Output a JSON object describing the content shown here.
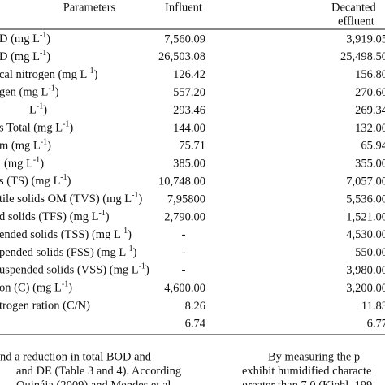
{
  "table": {
    "header": {
      "parameters": "Parameters",
      "influent": "Influent",
      "effluent": [
        "Decanted",
        "effluent"
      ]
    },
    "rows": [
      {
        "parameter": {
          "text": "D (mg L",
          "sup": "-1",
          "after": ")"
        },
        "influent": "7,560.09",
        "effluent": "3,919.05"
      },
      {
        "parameter": {
          "text": "D (mg L",
          "sup": "-1",
          "after": ")"
        },
        "influent": "26,503.08",
        "effluent": "25,498.50"
      },
      {
        "parameter": {
          "text": "cal nitrogen (mg L",
          "sup": "-1",
          "after": ")"
        },
        "influent": "126.42",
        "effluent": "156.80"
      },
      {
        "parameter": {
          "text": "gen (mg L",
          "sup": "-1",
          "after": ")"
        },
        "influent": "557.20",
        "effluent": "270.60"
      },
      {
        "parameter": {
          "text": "L",
          "sup": "-1",
          "after": ")"
        },
        "influent": "293.46",
        "effluent": "269.34"
      },
      {
        "parameter": {
          "text": "s Total (mg L",
          "sup": "-1",
          "after": ")"
        },
        "influent": "144.00",
        "effluent": "132.00"
      },
      {
        "parameter": {
          "text": "m (mg L",
          "sup": "-1",
          "after": ")"
        },
        "influent": "75.71",
        "effluent": "65.94"
      },
      {
        "parameter": {
          "text": "(mg L",
          "sup": "-1",
          "after": ")"
        },
        "influent": "385.00",
        "effluent": "355.00"
      },
      {
        "parameter": {
          "text": "s (TS) (mg L",
          "sup": "-1",
          "after": ")"
        },
        "influent": "10,748.00",
        "effluent": "7,057.00"
      },
      {
        "parameter": {
          "text": "tile solids OM (TVS) (mg L",
          "sup": "-1",
          "after": ")"
        },
        "influent": "7,95800",
        "effluent": "5,536.00"
      },
      {
        "parameter": {
          "text": "d solids (TFS) (mg L",
          "sup": "-1",
          "after": ")"
        },
        "influent": "2,790.00",
        "effluent": "1,521.00"
      },
      {
        "parameter": {
          "text": "ended solids (TSS) (mg L",
          "sup": "-1",
          "after": ")"
        },
        "influent": "-",
        "effluent": "4,530.00"
      },
      {
        "parameter": {
          "text": "pended solids (FSS) (mg L",
          "sup": "-1",
          "after": ")"
        },
        "influent": "-",
        "effluent": "550.00"
      },
      {
        "parameter": {
          "text": "uspended solids (VSS) (mg L",
          "sup": "-1",
          "after": ")"
        },
        "influent": "-",
        "effluent": "3,980.00"
      },
      {
        "parameter": {
          "text": "on (C) (mg L",
          "sup": "-1",
          "after": ")"
        },
        "influent": "4,600.00",
        "effluent": "3,200.00"
      },
      {
        "parameter": {
          "text": "trogen ration (C/N)"
        },
        "influent": "8.26",
        "effluent": "11.83"
      },
      {
        "influent": "6.74",
        "effluent": "6.77"
      }
    ]
  },
  "body": {
    "left": [
      "nd a reduction in total BOD and",
      "and DE (Table 3 and 4). According",
      "Quináia (2009) and Mendes et al."
    ],
    "right": [
      "By measuring the p",
      "exhibit humidified characte",
      "greater than 7.0 (Kiehl, 199"
    ]
  }
}
